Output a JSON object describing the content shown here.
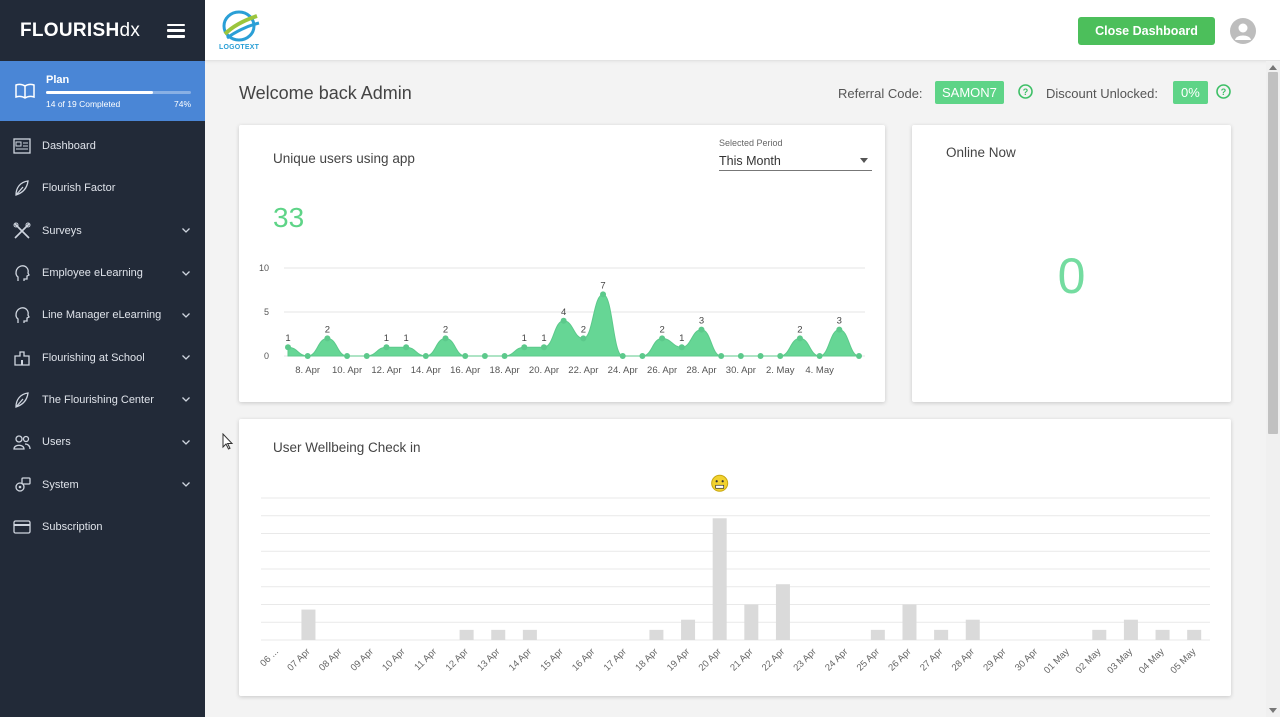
{
  "brand": {
    "bold": "FLOURISH",
    "light": "dx"
  },
  "plan": {
    "title": "Plan",
    "progress_text": "14 of 19 Completed",
    "percent_text": "74%",
    "progress": 0.74
  },
  "sidebar": {
    "items": [
      {
        "label": "Dashboard",
        "icon": "dashboard-icon",
        "has_chevron": false
      },
      {
        "label": "Flourish Factor",
        "icon": "leaf-icon",
        "has_chevron": false
      },
      {
        "label": "Surveys",
        "icon": "tools-icon",
        "has_chevron": true
      },
      {
        "label": "Employee eLearning",
        "icon": "head-icon",
        "has_chevron": true
      },
      {
        "label": "Line Manager eLearning",
        "icon": "head-icon",
        "has_chevron": true
      },
      {
        "label": "Flourishing at School",
        "icon": "school-icon",
        "has_chevron": true
      },
      {
        "label": "The Flourishing Center",
        "icon": "leaf-icon",
        "has_chevron": true
      },
      {
        "label": "Users",
        "icon": "users-icon",
        "has_chevron": true
      },
      {
        "label": "System",
        "icon": "system-icon",
        "has_chevron": true
      },
      {
        "label": "Subscription",
        "icon": "card-icon",
        "has_chevron": false
      }
    ]
  },
  "header": {
    "logo_text": "LOGOTEXT",
    "close_label": "Close Dashboard"
  },
  "main": {
    "welcome": "Welcome back Admin",
    "referral_label": "Referral Code:",
    "referral_code": "SAMON7",
    "discount_label": "Discount Unlocked:",
    "discount_value": "0%",
    "colors": {
      "accent": "#5ed487",
      "button": "#4cbf5b",
      "sidebar": "#222a38",
      "plan": "#4a86d6"
    }
  },
  "users_card": {
    "title": "Unique users using app",
    "period_label": "Selected Period",
    "period_value": "This Month",
    "count": "33"
  },
  "online_card": {
    "title": "Online Now",
    "count": "0"
  },
  "wellbeing_card": {
    "title": "User Wellbeing Check in"
  },
  "chart_data": [
    {
      "type": "area",
      "title": "Unique users using app",
      "ylim": [
        0,
        10
      ],
      "yticks": [
        "0",
        "5",
        "10"
      ],
      "x_labels": [
        "8. Apr",
        "10. Apr",
        "12. Apr",
        "14. Apr",
        "16. Apr",
        "18. Apr",
        "20. Apr",
        "22. Apr",
        "24. Apr",
        "26. Apr",
        "28. Apr",
        "30. Apr",
        "2. May",
        "4. May"
      ],
      "values": [
        1,
        0,
        2,
        0,
        0,
        1,
        1,
        0,
        2,
        0,
        0,
        0,
        1,
        1,
        4,
        2,
        7,
        0,
        0,
        2,
        1,
        3,
        0,
        0,
        0,
        0,
        2,
        0,
        3,
        0
      ],
      "grid": true
    },
    {
      "type": "bar",
      "title": "User Wellbeing Check in",
      "categories": [
        "06 ...",
        "07 Apr",
        "08 Apr",
        "09 Apr",
        "10 Apr",
        "11 Apr",
        "12 Apr",
        "13 Apr",
        "14 Apr",
        "15 Apr",
        "16 Apr",
        "17 Apr",
        "18 Apr",
        "19 Apr",
        "20 Apr",
        "21 Apr",
        "22 Apr",
        "23 Apr",
        "24 Apr",
        "25 Apr",
        "26 Apr",
        "27 Apr",
        "28 Apr",
        "29 Apr",
        "30 Apr",
        "01 May",
        "02 May",
        "03 May",
        "04 May",
        "05 May"
      ],
      "values": [
        0,
        3,
        0,
        0,
        0,
        0,
        1,
        1,
        1,
        0,
        0,
        0,
        1,
        2,
        12,
        3.5,
        5.5,
        0,
        0,
        1,
        3.5,
        1,
        2,
        0,
        0,
        0,
        1,
        2,
        1,
        1
      ],
      "marker": {
        "category": "20 Apr",
        "icon": "grinning-face-icon"
      },
      "grid": true
    }
  ]
}
